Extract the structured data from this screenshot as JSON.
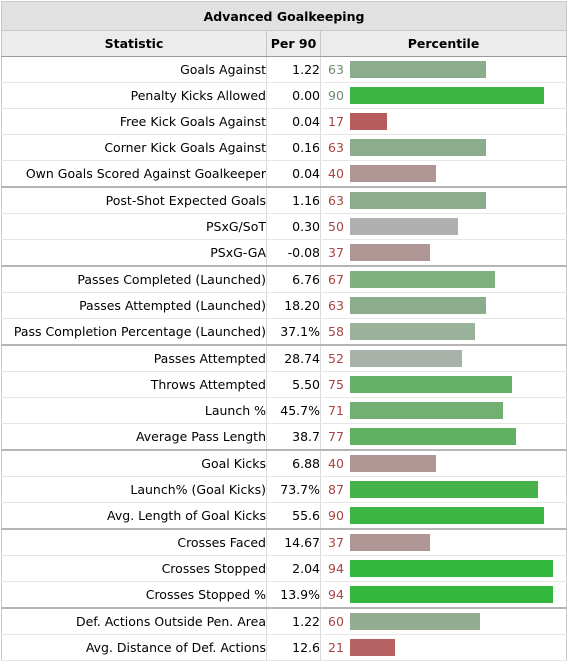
{
  "table": {
    "caption": "Advanced Goalkeeping",
    "headers": {
      "statistic": "Statistic",
      "per90": "Per 90",
      "percentile": "Percentile"
    },
    "max_bar_percentile": 94,
    "rows": [
      {
        "group": 1,
        "label": "Goals Against",
        "per90": "1.22",
        "percentile": 63,
        "pct_text": "63",
        "bar_color": "#8cad8b",
        "num_color": "#6d8a6c"
      },
      {
        "group": 1,
        "label": "Penalty Kicks Allowed",
        "per90": "0.00",
        "percentile": 90,
        "pct_text": "90",
        "bar_color": "#3db543",
        "num_color": "#6d8a6c"
      },
      {
        "group": 1,
        "label": "Free Kick Goals Against",
        "per90": "0.04",
        "percentile": 17,
        "pct_text": "17",
        "bar_color": "#b75c5c",
        "num_color": "#a84444"
      },
      {
        "group": 1,
        "label": "Corner Kick Goals Against",
        "per90": "0.16",
        "percentile": 63,
        "pct_text": "63",
        "bar_color": "#8cad8b",
        "num_color": "#a84444"
      },
      {
        "group": 1,
        "label": "Own Goals Scored Against Goalkeeper",
        "per90": "0.04",
        "percentile": 40,
        "pct_text": "40",
        "bar_color": "#b09595",
        "num_color": "#a84444"
      },
      {
        "group": 2,
        "label": "Post-Shot Expected Goals",
        "per90": "1.16",
        "percentile": 63,
        "pct_text": "63",
        "bar_color": "#8cad8b",
        "num_color": "#a84444"
      },
      {
        "group": 2,
        "label": "PSxG/SoT",
        "per90": "0.30",
        "percentile": 50,
        "pct_text": "50",
        "bar_color": "#b0b0b0",
        "num_color": "#a84444"
      },
      {
        "group": 2,
        "label": "PSxG-GA",
        "per90": "-0.08",
        "percentile": 37,
        "pct_text": "37",
        "bar_color": "#b09595",
        "num_color": "#a84444"
      },
      {
        "group": 3,
        "label": "Passes Completed (Launched)",
        "per90": "6.76",
        "percentile": 67,
        "pct_text": "67",
        "bar_color": "#7fb07d",
        "num_color": "#a84444"
      },
      {
        "group": 3,
        "label": "Passes Attempted (Launched)",
        "per90": "18.20",
        "percentile": 63,
        "pct_text": "63",
        "bar_color": "#8cad8b",
        "num_color": "#a84444"
      },
      {
        "group": 3,
        "label": "Pass Completion Percentage (Launched)",
        "per90": "37.1%",
        "percentile": 58,
        "pct_text": "58",
        "bar_color": "#9bb29a",
        "num_color": "#a84444"
      },
      {
        "group": 4,
        "label": "Passes Attempted",
        "per90": "28.74",
        "percentile": 52,
        "pct_text": "52",
        "bar_color": "#a9b2a8",
        "num_color": "#a84444"
      },
      {
        "group": 4,
        "label": "Throws Attempted",
        "per90": "5.50",
        "percentile": 75,
        "pct_text": "75",
        "bar_color": "#66b067",
        "num_color": "#a84444"
      },
      {
        "group": 4,
        "label": "Launch %",
        "per90": "45.7%",
        "percentile": 71,
        "pct_text": "71",
        "bar_color": "#72b072",
        "num_color": "#a84444"
      },
      {
        "group": 4,
        "label": "Average Pass Length",
        "per90": "38.7",
        "percentile": 77,
        "pct_text": "77",
        "bar_color": "#5fb061",
        "num_color": "#a84444"
      },
      {
        "group": 5,
        "label": "Goal Kicks",
        "per90": "6.88",
        "percentile": 40,
        "pct_text": "40",
        "bar_color": "#b09595",
        "num_color": "#a84444"
      },
      {
        "group": 5,
        "label": "Launch% (Goal Kicks)",
        "per90": "73.7%",
        "percentile": 87,
        "pct_text": "87",
        "bar_color": "#45b34a",
        "num_color": "#a84444"
      },
      {
        "group": 5,
        "label": "Avg. Length of Goal Kicks",
        "per90": "55.6",
        "percentile": 90,
        "pct_text": "90",
        "bar_color": "#3db543",
        "num_color": "#a84444"
      },
      {
        "group": 6,
        "label": "Crosses Faced",
        "per90": "14.67",
        "percentile": 37,
        "pct_text": "37",
        "bar_color": "#b09595",
        "num_color": "#a84444"
      },
      {
        "group": 6,
        "label": "Crosses Stopped",
        "per90": "2.04",
        "percentile": 94,
        "pct_text": "94",
        "bar_color": "#33b73a",
        "num_color": "#a84444"
      },
      {
        "group": 6,
        "label": "Crosses Stopped %",
        "per90": "13.9%",
        "percentile": 94,
        "pct_text": "94",
        "bar_color": "#33b73a",
        "num_color": "#a84444"
      },
      {
        "group": 7,
        "label": "Def. Actions Outside Pen. Area",
        "per90": "1.22",
        "percentile": 60,
        "pct_text": "60",
        "bar_color": "#93ad92",
        "num_color": "#a84444"
      },
      {
        "group": 7,
        "label": "Avg. Distance of Def. Actions",
        "per90": "12.6",
        "percentile": 21,
        "pct_text": "21",
        "bar_color": "#b76262",
        "num_color": "#a84444"
      }
    ]
  }
}
